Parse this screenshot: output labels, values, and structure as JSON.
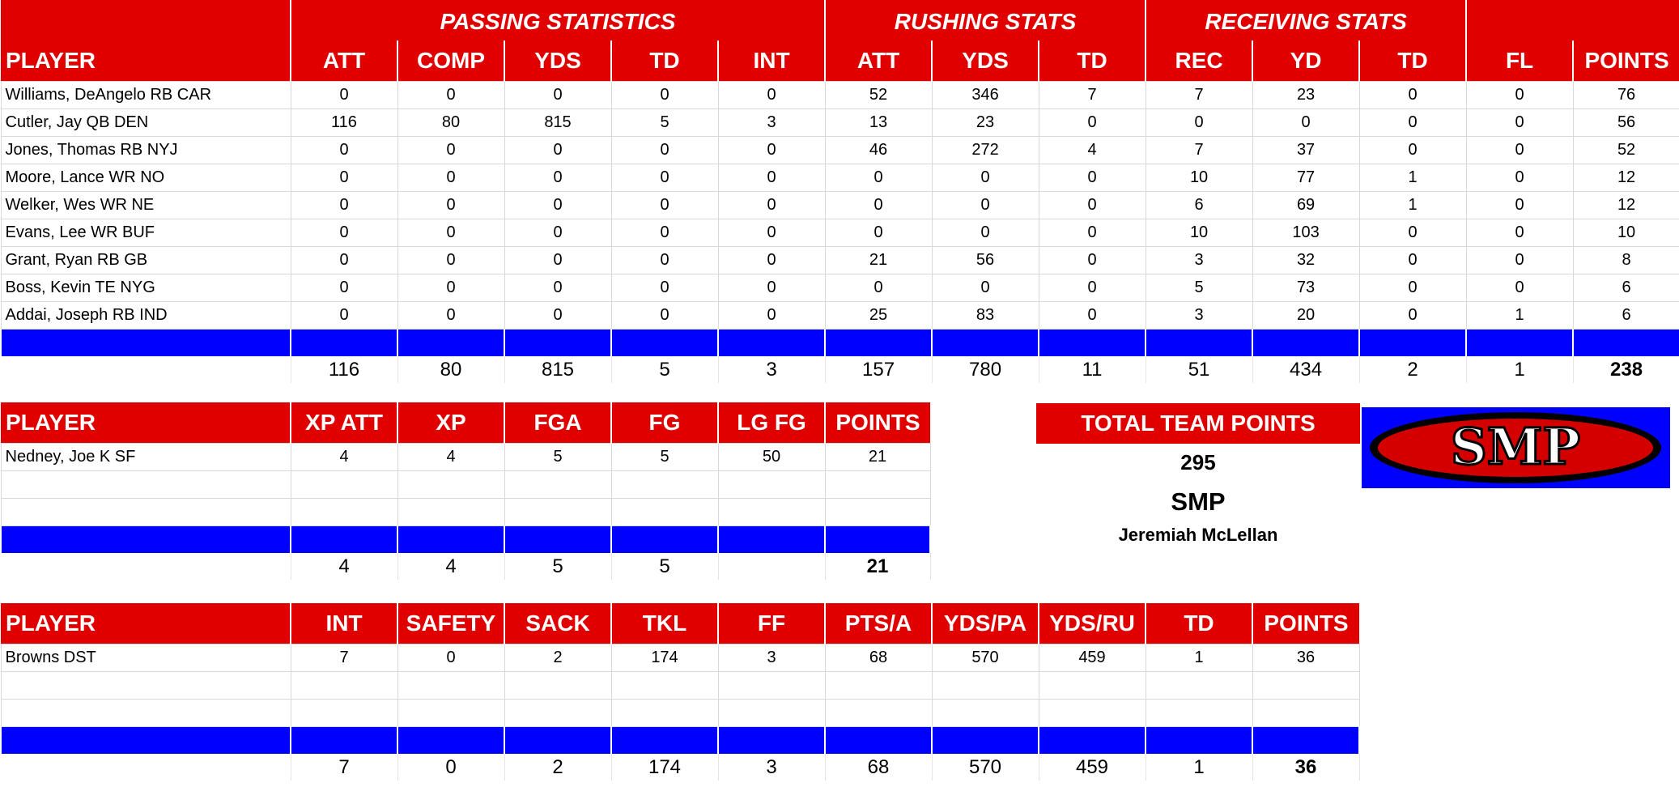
{
  "offense": {
    "group_headers": [
      "PASSING STATISTICS",
      "RUSHING STATS",
      "RECEIVING STATS"
    ],
    "columns": [
      "PLAYER",
      "ATT",
      "COMP",
      "YDS",
      "TD",
      "INT",
      "ATT",
      "YDS",
      "TD",
      "REC",
      "YD",
      "TD",
      "FL",
      "POINTS"
    ],
    "rows": [
      [
        "Williams, DeAngelo RB CAR",
        "0",
        "0",
        "0",
        "0",
        "0",
        "52",
        "346",
        "7",
        "7",
        "23",
        "0",
        "0",
        "76"
      ],
      [
        "Cutler, Jay QB DEN",
        "116",
        "80",
        "815",
        "5",
        "3",
        "13",
        "23",
        "0",
        "0",
        "0",
        "0",
        "0",
        "56"
      ],
      [
        "Jones, Thomas RB NYJ",
        "0",
        "0",
        "0",
        "0",
        "0",
        "46",
        "272",
        "4",
        "7",
        "37",
        "0",
        "0",
        "52"
      ],
      [
        "Moore, Lance WR NO",
        "0",
        "0",
        "0",
        "0",
        "0",
        "0",
        "0",
        "0",
        "10",
        "77",
        "1",
        "0",
        "12"
      ],
      [
        "Welker, Wes WR NE",
        "0",
        "0",
        "0",
        "0",
        "0",
        "0",
        "0",
        "0",
        "6",
        "69",
        "1",
        "0",
        "12"
      ],
      [
        "Evans, Lee WR BUF",
        "0",
        "0",
        "0",
        "0",
        "0",
        "0",
        "0",
        "0",
        "10",
        "103",
        "0",
        "0",
        "10"
      ],
      [
        "Grant, Ryan RB GB",
        "0",
        "0",
        "0",
        "0",
        "0",
        "21",
        "56",
        "0",
        "3",
        "32",
        "0",
        "0",
        "8"
      ],
      [
        "Boss, Kevin TE NYG",
        "0",
        "0",
        "0",
        "0",
        "0",
        "0",
        "0",
        "0",
        "5",
        "73",
        "0",
        "0",
        "6"
      ],
      [
        "Addai, Joseph RB IND",
        "0",
        "0",
        "0",
        "0",
        "0",
        "25",
        "83",
        "0",
        "3",
        "20",
        "0",
        "1",
        "6"
      ]
    ],
    "totals": [
      "",
      "116",
      "80",
      "815",
      "5",
      "3",
      "157",
      "780",
      "11",
      "51",
      "434",
      "2",
      "1",
      "238"
    ]
  },
  "kicker": {
    "columns": [
      "PLAYER",
      "XP ATT",
      "XP",
      "FGA",
      "FG",
      "LG FG",
      "POINTS"
    ],
    "rows": [
      [
        "Nedney, Joe K SF",
        "4",
        "4",
        "5",
        "5",
        "50",
        "21"
      ],
      [
        "",
        "",
        "",
        "",
        "",
        "",
        ""
      ],
      [
        "",
        "",
        "",
        "",
        "",
        "",
        ""
      ]
    ],
    "totals": [
      "",
      "4",
      "4",
      "5",
      "5",
      "",
      "21"
    ]
  },
  "defense": {
    "columns": [
      "PLAYER",
      "INT",
      "SAFETY",
      "SACK",
      "TKL",
      "FF",
      "PTS/A",
      "YDS/PA",
      "YDS/RU",
      "TD",
      "POINTS"
    ],
    "rows": [
      [
        "Browns DST",
        "7",
        "0",
        "2",
        "174",
        "3",
        "68",
        "570",
        "459",
        "1",
        "36"
      ],
      [
        "",
        "",
        "",
        "",
        "",
        "",
        "",
        "",
        "",
        "",
        ""
      ],
      [
        "",
        "",
        "",
        "",
        "",
        "",
        "",
        "",
        "",
        "",
        ""
      ]
    ],
    "totals": [
      "",
      "7",
      "0",
      "2",
      "174",
      "3",
      "68",
      "570",
      "459",
      "1",
      "36"
    ]
  },
  "team": {
    "title": "TOTAL TEAM POINTS",
    "points": "295",
    "abbr": "SMP",
    "owner": "Jeremiah McLellan"
  },
  "logo": {
    "text": "SMP",
    "colors": {
      "background": "#0000ff",
      "outer": "#000000",
      "inner": "#d40000",
      "text": "#ffffff"
    }
  },
  "colors": {
    "header": "#e00000",
    "separator_row": "#0000ff"
  }
}
